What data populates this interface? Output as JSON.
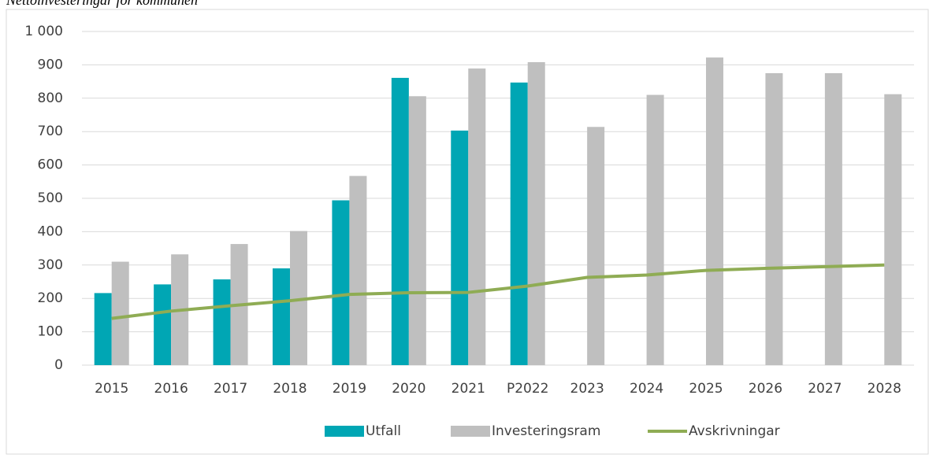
{
  "chart_data": {
    "type": "bar",
    "title": "Nettoinvesteringar för kommunen",
    "categories": [
      "2015",
      "2016",
      "2017",
      "2018",
      "2019",
      "2020",
      "2021",
      "P2022",
      "2023",
      "2024",
      "2025",
      "2026",
      "2027",
      "2028"
    ],
    "series": [
      {
        "name": "Utfall",
        "type": "bar",
        "color": "#00a6b4",
        "values": [
          216,
          242,
          257,
          290,
          494,
          861,
          703,
          847,
          null,
          null,
          null,
          null,
          null,
          null
        ]
      },
      {
        "name": "Investeringsram",
        "type": "bar",
        "color": "#bfbfbf",
        "values": [
          310,
          332,
          363,
          402,
          567,
          806,
          889,
          908,
          714,
          810,
          922,
          875,
          875,
          812
        ]
      },
      {
        "name": "Avskrivningar",
        "type": "line",
        "color": "#8fac54",
        "values": [
          140,
          162,
          178,
          193,
          212,
          217,
          218,
          237,
          263,
          270,
          284,
          290,
          295,
          300
        ]
      }
    ],
    "ylim": [
      0,
      1000
    ],
    "yticks": [
      0,
      100,
      200,
      300,
      400,
      500,
      600,
      700,
      800,
      900,
      {
        "value": 1000,
        "label": "1 000"
      }
    ],
    "grid": true,
    "legend": "bottom"
  }
}
